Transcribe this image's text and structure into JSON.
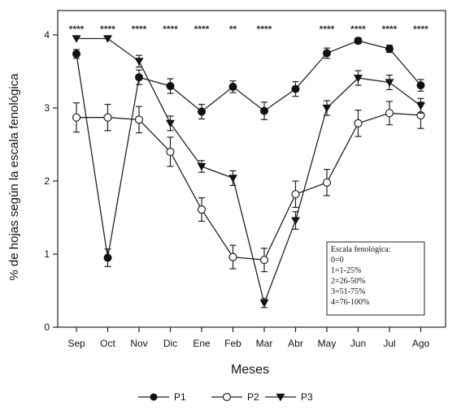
{
  "chart_data": {
    "type": "line",
    "xlabel": "Meses",
    "ylabel": "% de hojas según la escala fenológica",
    "ylim": [
      0,
      4
    ],
    "yticks": [
      "0",
      "1",
      "2",
      "3",
      "4"
    ],
    "categories": [
      "Sep",
      "Oct",
      "Nov",
      "Dic",
      "Ene",
      "Feb",
      "Mar",
      "Abr",
      "May",
      "Jun",
      "Jul",
      "Ago"
    ],
    "significance": [
      "****",
      "****",
      "****",
      "****",
      "****",
      "**",
      "****",
      "",
      "****",
      "****",
      "****",
      "****"
    ],
    "series": [
      {
        "name": "P1",
        "marker": "filled-circle",
        "values": [
          3.74,
          0.95,
          3.42,
          3.3,
          2.95,
          3.29,
          2.96,
          3.26,
          3.75,
          3.92,
          3.81,
          3.31
        ],
        "errors": [
          0.06,
          0.12,
          0.1,
          0.1,
          0.1,
          0.08,
          0.12,
          0.1,
          0.07,
          0.04,
          0.05,
          0.08
        ]
      },
      {
        "name": "P2",
        "marker": "open-circle",
        "values": [
          2.87,
          2.87,
          2.84,
          2.4,
          1.61,
          0.96,
          0.92,
          1.82,
          1.98,
          2.79,
          2.93,
          2.9
        ],
        "errors": [
          0.2,
          0.18,
          0.18,
          0.2,
          0.16,
          0.16,
          0.16,
          0.18,
          0.18,
          0.18,
          0.16,
          0.18
        ]
      },
      {
        "name": "P3",
        "marker": "filled-triangle-down",
        "values": [
          3.95,
          3.95,
          3.64,
          2.79,
          2.2,
          2.04,
          0.33,
          1.46,
          3.0,
          3.41,
          3.35,
          3.03
        ],
        "errors": [
          0.0,
          0.0,
          0.08,
          0.1,
          0.08,
          0.1,
          0.06,
          0.12,
          0.1,
          0.1,
          0.1,
          0.1
        ]
      }
    ],
    "legend_position": "bottom",
    "scale_box": {
      "title": "Escala fenológica:",
      "lines": [
        "0=0",
        "1=1-25%",
        "2=26-50%",
        "3=51-75%",
        "4=76-100%"
      ]
    }
  }
}
